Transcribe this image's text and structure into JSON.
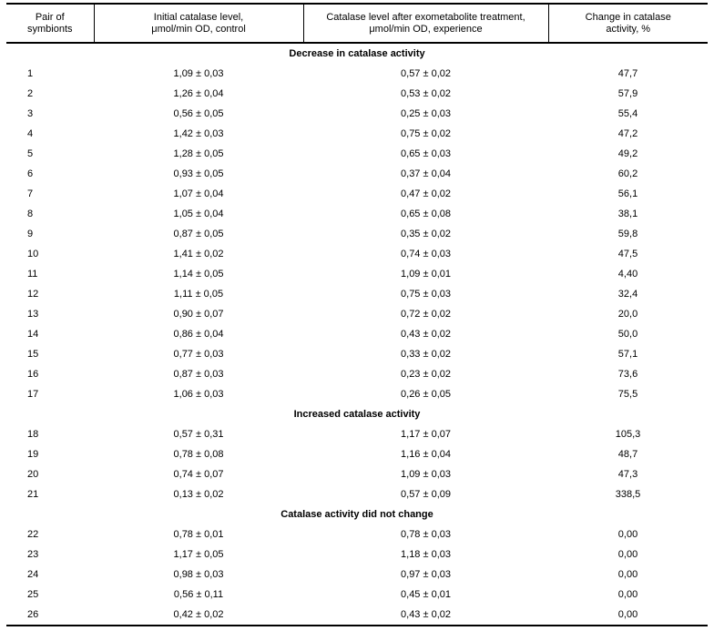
{
  "colors": {
    "background": "#ffffff",
    "text": "#000000",
    "rule": "#000000"
  },
  "table": {
    "headers": [
      "Pair of\nsymbionts",
      "Initial catalase level,\nμmol/min OD, control",
      "Catalase level after exometabolite treatment,\nμmol/min OD, experience",
      "Change in catalase\nactivity, %"
    ],
    "sections": [
      {
        "title": "Decrease in catalase activity",
        "rows": [
          [
            "1",
            "1,09 ± 0,03",
            "0,57 ± 0,02",
            "47,7"
          ],
          [
            "2",
            "1,26 ± 0,04",
            "0,53 ± 0,02",
            "57,9"
          ],
          [
            "3",
            "0,56 ± 0,05",
            "0,25 ± 0,03",
            "55,4"
          ],
          [
            "4",
            "1,42 ± 0,03",
            "0,75 ± 0,02",
            "47,2"
          ],
          [
            "5",
            "1,28 ± 0,05",
            "0,65 ± 0,03",
            "49,2"
          ],
          [
            "6",
            "0,93 ± 0,05",
            "0,37 ± 0,04",
            "60,2"
          ],
          [
            "7",
            "1,07 ± 0,04",
            "0,47 ± 0,02",
            "56,1"
          ],
          [
            "8",
            "1,05 ± 0,04",
            "0,65 ± 0,08",
            "38,1"
          ],
          [
            "9",
            "0,87 ± 0,05",
            "0,35 ± 0,02",
            "59,8"
          ],
          [
            "10",
            "1,41 ± 0,02",
            "0,74 ± 0,03",
            "47,5"
          ],
          [
            "11",
            "1,14 ± 0,05",
            "1,09 ± 0,01",
            "4,40"
          ],
          [
            "12",
            "1,11 ± 0,05",
            "0,75 ± 0,03",
            "32,4"
          ],
          [
            "13",
            "0,90 ± 0,07",
            "0,72 ± 0,02",
            "20,0"
          ],
          [
            "14",
            "0,86 ± 0,04",
            "0,43 ± 0,02",
            "50,0"
          ],
          [
            "15",
            "0,77 ± 0,03",
            "0,33 ± 0,02",
            "57,1"
          ],
          [
            "16",
            "0,87 ± 0,03",
            "0,23 ± 0,02",
            "73,6"
          ],
          [
            "17",
            "1,06 ± 0,03",
            "0,26 ± 0,05",
            "75,5"
          ]
        ]
      },
      {
        "title": "Increased catalase activity",
        "rows": [
          [
            "18",
            "0,57 ± 0,31",
            "1,17 ± 0,07",
            "105,3"
          ],
          [
            "19",
            "0,78 ± 0,08",
            "1,16 ± 0,04",
            "48,7"
          ],
          [
            "20",
            "0,74 ± 0,07",
            "1,09 ± 0,03",
            "47,3"
          ],
          [
            "21",
            "0,13 ± 0,02",
            "0,57 ± 0,09",
            "338,5"
          ]
        ]
      },
      {
        "title": "Catalase activity did not change",
        "rows": [
          [
            "22",
            "0,78 ± 0,01",
            "0,78 ± 0,03",
            "0,00"
          ],
          [
            "23",
            "1,17 ± 0,05",
            "1,18 ± 0,03",
            "0,00"
          ],
          [
            "24",
            "0,98 ± 0,03",
            "0,97 ± 0,03",
            "0,00"
          ],
          [
            "25",
            "0,56 ± 0,11",
            "0,45 ± 0,01",
            "0,00"
          ],
          [
            "26",
            "0,42 ± 0,02",
            "0,43 ± 0,02",
            "0,00"
          ]
        ]
      }
    ]
  }
}
